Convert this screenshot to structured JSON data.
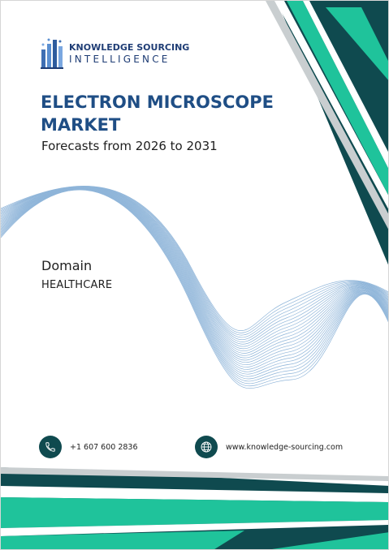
{
  "brand": {
    "name_line1": "KNOWLEDGE SOURCING",
    "name_line2": "INTELLIGENCE",
    "logo_icon": "building-bars-logo-icon"
  },
  "report": {
    "title": "ELECTRON MICROSCOPE MARKET",
    "subtitle": "Forecasts from 2026 to 2031"
  },
  "domain": {
    "label": "Domain",
    "value": "HEALTHCARE"
  },
  "contact": {
    "phone": "+1 607 600 2836",
    "phone_icon": "phone-icon",
    "website": "www.knowledge-sourcing.com",
    "website_icon": "globe-icon"
  },
  "colors": {
    "navy": "#1f4e85",
    "teal_dark": "#0f4a4f",
    "teal_bright": "#1fc39b",
    "wave": "#8fb5d9",
    "gray_stripe": "#c9ced0"
  }
}
